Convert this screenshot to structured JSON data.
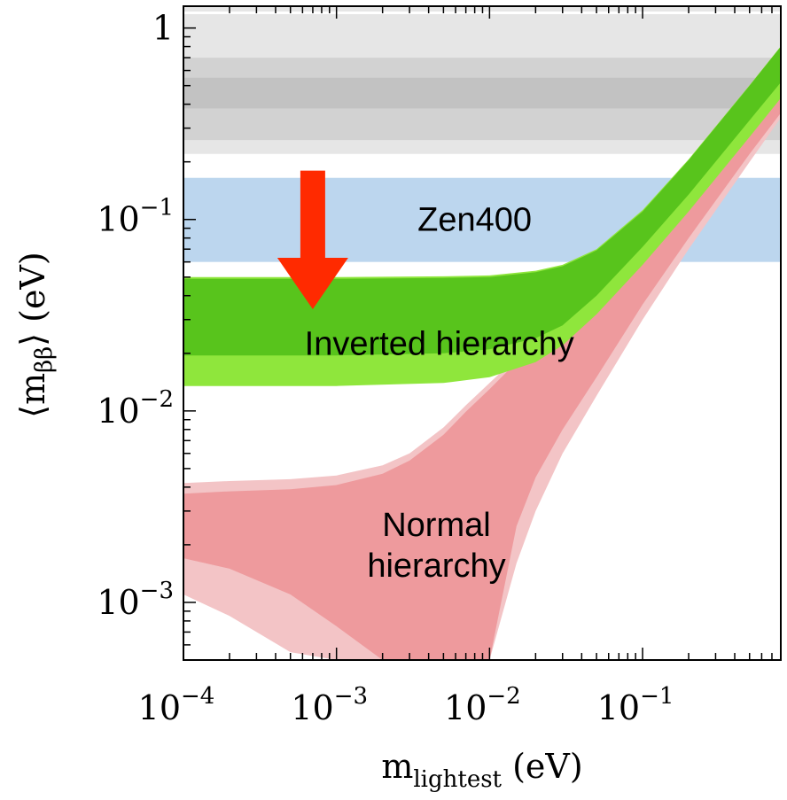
{
  "chart_data": {
    "type": "area",
    "x_scale": "log",
    "y_scale": "log",
    "xlim": [
      0.0001,
      0.8
    ],
    "ylim": [
      0.0005,
      1.3
    ],
    "xlabel": {
      "main": "m",
      "sub": "lightest",
      "unit": " (eV)"
    },
    "ylabel": {
      "open": "⟨m",
      "sub": "ββ",
      "close": "⟩ (eV)"
    },
    "x_ticks": [
      {
        "value": 0.0001,
        "base": "10",
        "exp": "−4"
      },
      {
        "value": 0.001,
        "base": "10",
        "exp": "−3"
      },
      {
        "value": 0.01,
        "base": "10",
        "exp": "−2"
      },
      {
        "value": 0.1,
        "base": "10",
        "exp": "−1"
      }
    ],
    "y_ticks": [
      {
        "value": 1,
        "base": "1",
        "exp": ""
      },
      {
        "value": 0.1,
        "base": "10",
        "exp": "−1"
      },
      {
        "value": 0.01,
        "base": "10",
        "exp": "−2"
      },
      {
        "value": 0.001,
        "base": "10",
        "exp": "−3"
      }
    ],
    "horizontal_bands": [
      {
        "ymin": 0.22,
        "ymax": 1.3,
        "color": "#e6e6e6"
      },
      {
        "ymin": 0.26,
        "ymax": 0.7,
        "color": "#d2d2d2"
      },
      {
        "ymin": 0.38,
        "ymax": 0.55,
        "color": "#c2c2c2"
      },
      {
        "ymin": 0.06,
        "ymax": 0.165,
        "color": "#bcd6ee",
        "label": "Zen400"
      }
    ],
    "series": [
      {
        "name": "Normal hierarchy",
        "outer_color": "#f3c4c6",
        "inner_color": "#ee9a9d",
        "outer": {
          "x": [
            0.0001,
            0.0002,
            0.0005,
            0.001,
            0.002,
            0.003,
            0.005,
            0.007,
            0.01,
            0.015,
            0.02,
            0.03,
            0.05,
            0.1,
            0.2,
            0.5,
            0.8
          ],
          "upper": [
            0.0042,
            0.0043,
            0.0044,
            0.0046,
            0.0052,
            0.006,
            0.0082,
            0.0107,
            0.014,
            0.019,
            0.024,
            0.034,
            0.054,
            0.1,
            0.2,
            0.5,
            0.8
          ],
          "lower": [
            0.0011,
            0.00085,
            0.00055,
            0.0005,
            0.0005,
            0.0005,
            0.0005,
            0.0005,
            0.0005,
            0.0016,
            0.003,
            0.006,
            0.012,
            0.03,
            0.07,
            0.2,
            0.34
          ]
        },
        "inner": {
          "x": [
            0.0001,
            0.0002,
            0.0005,
            0.001,
            0.002,
            0.003,
            0.005,
            0.007,
            0.01,
            0.015,
            0.02,
            0.03,
            0.05,
            0.1,
            0.2,
            0.5,
            0.8
          ],
          "upper": [
            0.0037,
            0.0038,
            0.0039,
            0.0041,
            0.0047,
            0.0055,
            0.0075,
            0.0099,
            0.013,
            0.018,
            0.023,
            0.032,
            0.052,
            0.098,
            0.195,
            0.49,
            0.78
          ],
          "lower": [
            0.0017,
            0.0015,
            0.0011,
            0.00075,
            0.0005,
            0.0005,
            0.0005,
            0.0005,
            0.0005,
            0.0025,
            0.0045,
            0.008,
            0.015,
            0.036,
            0.08,
            0.22,
            0.36
          ]
        }
      },
      {
        "name": "Inverted hierarchy",
        "outer_color": "#8fe63c",
        "inner_color": "#58c41c",
        "outer": {
          "x": [
            0.0001,
            0.001,
            0.005,
            0.01,
            0.02,
            0.03,
            0.05,
            0.1,
            0.2,
            0.5,
            0.8
          ],
          "upper": [
            0.05,
            0.05,
            0.0505,
            0.051,
            0.054,
            0.058,
            0.07,
            0.112,
            0.206,
            0.503,
            0.802
          ],
          "lower": [
            0.0135,
            0.0135,
            0.014,
            0.015,
            0.018,
            0.022,
            0.032,
            0.058,
            0.11,
            0.27,
            0.43
          ]
        },
        "inner": {
          "x": [
            0.0001,
            0.001,
            0.005,
            0.01,
            0.02,
            0.03,
            0.05,
            0.1,
            0.2,
            0.5,
            0.8
          ],
          "upper": [
            0.049,
            0.049,
            0.0495,
            0.05,
            0.053,
            0.057,
            0.069,
            0.11,
            0.204,
            0.5,
            0.8
          ],
          "lower": [
            0.0195,
            0.0195,
            0.02,
            0.021,
            0.024,
            0.028,
            0.04,
            0.072,
            0.135,
            0.33,
            0.52
          ]
        }
      }
    ],
    "annotations": [
      {
        "text": "Zen400",
        "x": 0.008,
        "y": 0.1
      },
      {
        "text": "Inverted hierarchy",
        "x": 0.0047,
        "y": 0.0225
      },
      {
        "text": "Normal hierarchy",
        "lines": [
          "Normal",
          "hierarchy"
        ],
        "x": 0.0045,
        "y": 0.0018
      }
    ],
    "arrow": {
      "color": "#ff2a00",
      "x": 0.0007,
      "y_from": 0.18,
      "y_to": 0.034
    },
    "grid": false,
    "legend": "none"
  }
}
